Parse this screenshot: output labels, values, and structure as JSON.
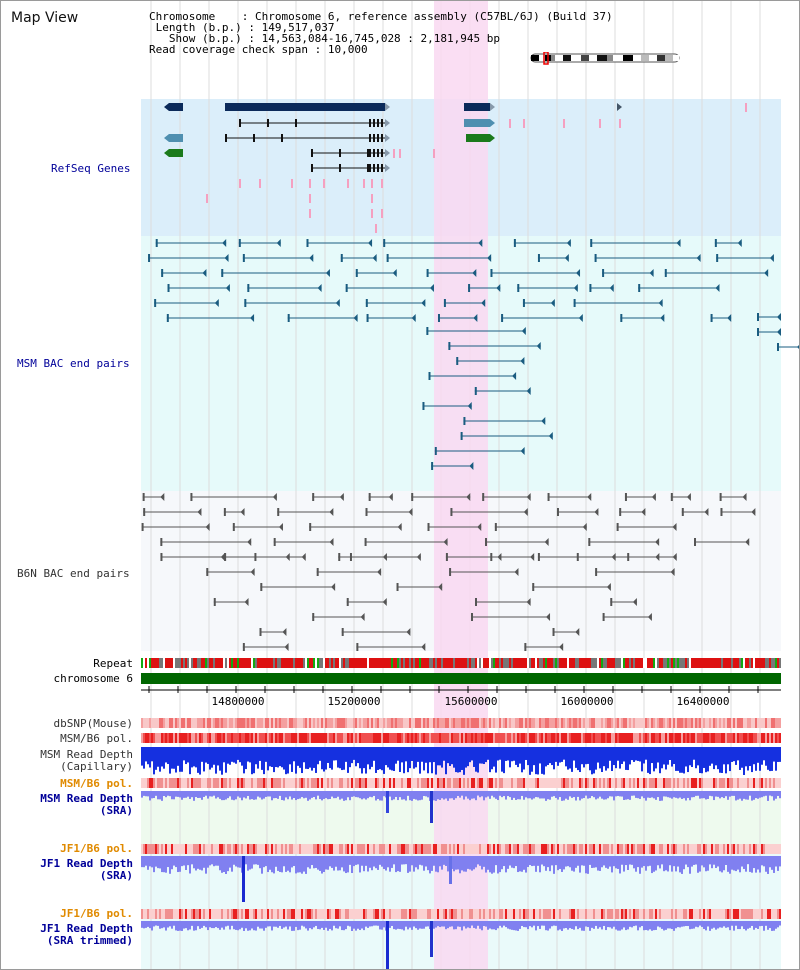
{
  "panel_title": "Map View",
  "info": {
    "chromosome_label": "Chromosome",
    "chromosome_value": "Chromosome 6, reference assembly (C57BL/6J) (Build 37)",
    "length_label": "Length (b.p.)",
    "length_value": "149,517,037",
    "show_label": "Show (b.p.)",
    "show_value": "14,563,084-16,745,028 : 2,181,945 bp",
    "coverage_label": "Read coverage check span",
    "coverage_value": "10,000"
  },
  "tracks": {
    "refseq": "RefSeq Genes",
    "msm_bac": "MSM BAC end pairs",
    "b6n_bac": "B6N BAC end pairs",
    "repeat": "Repeat",
    "chromosome": "chromosome 6",
    "dbsnp": "dbSNP(Mouse)",
    "msm_b6_pol_1": "MSM/B6 pol.",
    "msm_depth_cap_1": "MSM Read Depth",
    "msm_depth_cap_2": "(Capillary)",
    "msm_b6_pol_2": "MSM/B6 pol.",
    "msm_depth_sra_1": "MSM Read Depth",
    "msm_depth_sra_2": "(SRA)",
    "jf1_b6_pol_1": "JF1/B6 pol.",
    "jf1_depth_sra_1": "JF1 Read Depth",
    "jf1_depth_sra_2": "(SRA)",
    "jf1_b6_pol_2": "JF1/B6 pol.",
    "jf1_depth_trim_1": "JF1 Read Depth",
    "jf1_depth_trim_2": "(SRA trimmed)"
  },
  "axis_ticks": [
    "14800000",
    "15200000",
    "15600000",
    "16000000",
    "16400000"
  ],
  "colors": {
    "refseq_bg": "#dbeefa",
    "msm_bg": "#e6fafa",
    "b6n_bg": "#f6f8fb",
    "highlight": "#f9d8f1",
    "chromosome_bar": "#006600",
    "msm_depth_cap": "#1530e0",
    "depth_sra": "#8080f0",
    "pol_red": "#e83030",
    "label_blue": "#000099",
    "label_orange": "#e08a00"
  }
}
